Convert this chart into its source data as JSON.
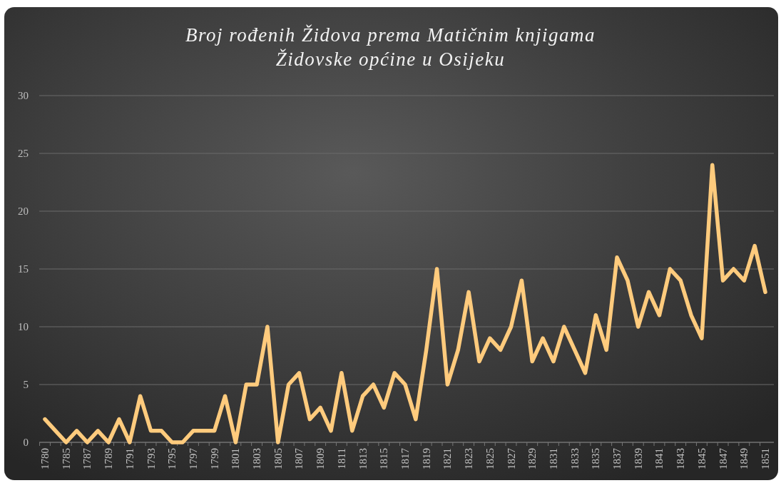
{
  "chart_data": {
    "type": "line",
    "title": "Broj rođenih Židova prema Matičnim knjigama Židovske općine u Osijeku",
    "categories": [
      "1780",
      null,
      "1785",
      null,
      "1787",
      null,
      "1789",
      null,
      "1791",
      null,
      "1793",
      null,
      "1795",
      null,
      "1797",
      null,
      "1799",
      null,
      "1801",
      null,
      "1803",
      null,
      "1805",
      null,
      "1807",
      null,
      "1809",
      null,
      "1811",
      null,
      "1813",
      null,
      "1815",
      null,
      "1817",
      null,
      "1819",
      null,
      "1821",
      null,
      "1823",
      null,
      "1825",
      null,
      "1827",
      null,
      "1829",
      null,
      "1831",
      null,
      "1833",
      null,
      "1835",
      null,
      "1837",
      null,
      "1839",
      null,
      "1841",
      null,
      "1843",
      null,
      "1845",
      null,
      "1847",
      null,
      "1849",
      null,
      "1851"
    ],
    "series": [
      {
        "color": "#ffcb7d",
        "values": [
          2,
          1,
          0,
          1,
          0,
          1,
          0,
          2,
          0,
          4,
          1,
          1,
          0,
          0,
          1,
          1,
          1,
          4,
          0,
          5,
          5,
          10,
          0,
          5,
          6,
          2,
          3,
          1,
          6,
          1,
          4,
          5,
          3,
          6,
          5,
          2,
          8,
          15,
          5,
          8,
          13,
          7,
          9,
          8,
          10,
          14,
          7,
          9,
          7,
          10,
          8,
          6,
          11,
          8,
          16,
          14,
          10,
          13,
          11,
          15,
          14,
          11,
          9,
          24,
          14,
          15,
          14,
          17,
          13
        ]
      }
    ],
    "ylim": [
      0,
      30
    ],
    "yticks": [
      0,
      5,
      10,
      15,
      20,
      25,
      30
    ],
    "grid": "y",
    "marker": "none",
    "line_style": "solid"
  }
}
